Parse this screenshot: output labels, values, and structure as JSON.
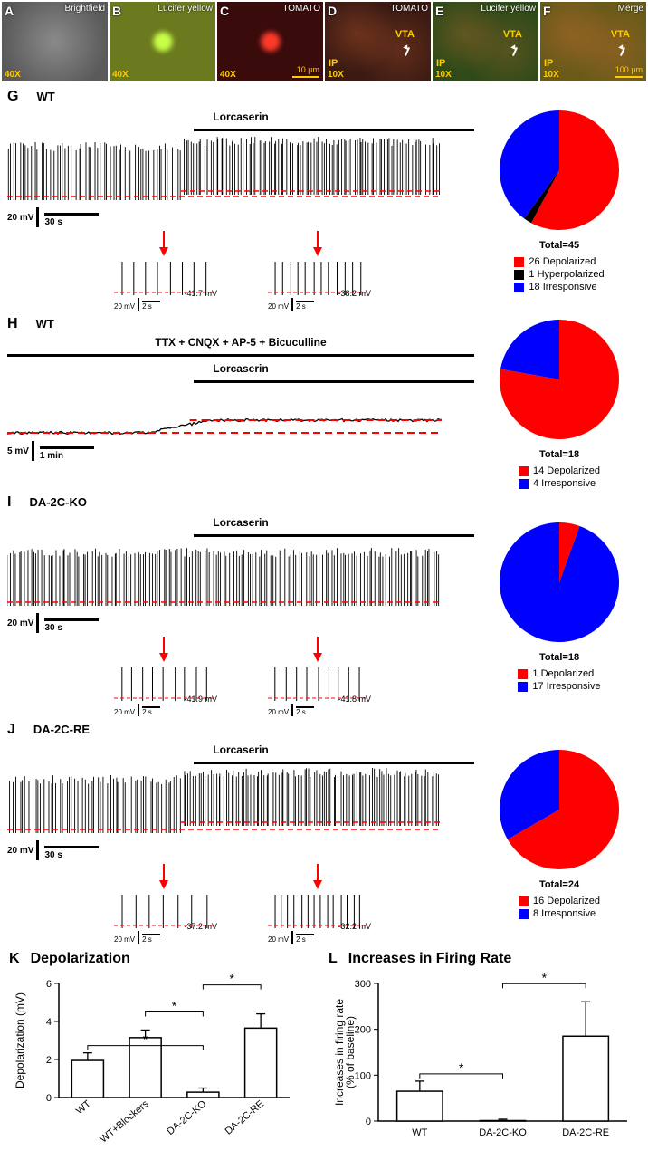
{
  "micro": {
    "panels": [
      {
        "letter": "A",
        "title": "Brightfield",
        "mag": "40X",
        "bg": "#6b6b6b",
        "blob": null,
        "scalebar": null,
        "vta": false,
        "ip": false,
        "arrow": false
      },
      {
        "letter": "B",
        "title": "Lucifer yellow",
        "mag": "40X",
        "bg": "#6b7a1e",
        "blob": "#c7ff4a",
        "scalebar": null,
        "vta": false,
        "ip": false,
        "arrow": false
      },
      {
        "letter": "C",
        "title": "TOMATO",
        "mag": "40X",
        "bg": "#3a0b0b",
        "blob": "#ff3a2a",
        "scalebar": "10 µm",
        "vta": false,
        "ip": false,
        "arrow": false
      },
      {
        "letter": "D",
        "title": "TOMATO",
        "mag": "10X",
        "bg": "#3a1a12",
        "blob": null,
        "scalebar": null,
        "vta": true,
        "ip": true,
        "arrow": true
      },
      {
        "letter": "E",
        "title": "Lucifer yellow",
        "mag": "10X",
        "bg": "#2e4a18",
        "blob": null,
        "scalebar": null,
        "vta": true,
        "ip": true,
        "arrow": true
      },
      {
        "letter": "F",
        "title": "Merge",
        "mag": "10X",
        "bg": "#6a5a1a",
        "blob": null,
        "scalebar": "100 µm",
        "vta": true,
        "ip": true,
        "arrow": true
      }
    ]
  },
  "sections": {
    "G": {
      "genotype": "WT",
      "drug": "Lorcaserin",
      "blockers": null,
      "yscale": "20 mV",
      "xscale": "30 s",
      "inset_yscale": "20 mV",
      "inset_xscale": "2 s",
      "inset_mv_left": "-41.7 mV",
      "inset_mv_right": "-38.2 mV",
      "trace_baseline_mv": -41.7,
      "pie": {
        "total": 45,
        "slices": [
          {
            "label": "26 Depolarized",
            "value": 26,
            "color": "#ff0000"
          },
          {
            "label": "1 Hyperpolarized",
            "value": 1,
            "color": "#000000"
          },
          {
            "label": "18 Irresponsive",
            "value": 18,
            "color": "#0000ff"
          }
        ]
      }
    },
    "H": {
      "genotype": "WT",
      "drug": "Lorcaserin",
      "blockers": "TTX + CNQX + AP-5 + Bicuculline",
      "yscale": "5 mV",
      "xscale": "1 min",
      "inset_yscale": null,
      "inset_xscale": null,
      "inset_mv_left": null,
      "inset_mv_right": null,
      "pie": {
        "total": 18,
        "slices": [
          {
            "label": "14 Depolarized",
            "value": 14,
            "color": "#ff0000"
          },
          {
            "label": "4 Irresponsive",
            "value": 4,
            "color": "#0000ff"
          }
        ]
      }
    },
    "I": {
      "genotype": "DA-2C-KO",
      "drug": "Lorcaserin",
      "blockers": null,
      "yscale": "20 mV",
      "xscale": "30 s",
      "inset_yscale": "20 mV",
      "inset_xscale": "2 s",
      "inset_mv_left": "-41.9 mV",
      "inset_mv_right": "-41.8 mV",
      "pie": {
        "total": 18,
        "slices": [
          {
            "label": "1 Depolarized",
            "value": 1,
            "color": "#ff0000"
          },
          {
            "label": "17 Irresponsive",
            "value": 17,
            "color": "#0000ff"
          }
        ]
      }
    },
    "J": {
      "genotype": "DA-2C-RE",
      "drug": "Lorcaserin",
      "blockers": null,
      "yscale": "20 mV",
      "xscale": "30 s",
      "inset_yscale": "20 mV",
      "inset_xscale": "2 s",
      "inset_mv_left": "-37.2 mV",
      "inset_mv_right": "-32.2 mV",
      "pie": {
        "total": 24,
        "slices": [
          {
            "label": "16 Depolarized",
            "value": 16,
            "color": "#ff0000"
          },
          {
            "label": "8 Irresponsive",
            "value": 8,
            "color": "#0000ff"
          }
        ]
      }
    }
  },
  "barK": {
    "title": "Depolarization",
    "ylabel": "Depolarization (mV)",
    "ylim": [
      0,
      6
    ],
    "ytick_step": 2,
    "categories": [
      "WT",
      "WT+Blockers",
      "DA-2C-KO",
      "DA-2C-RE"
    ],
    "values": [
      1.95,
      3.15,
      0.28,
      3.65
    ],
    "errors": [
      0.4,
      0.4,
      0.22,
      0.75
    ],
    "bar_color": "#ffffff",
    "border_color": "#000000",
    "sig_pairs_star": [
      [
        0,
        2
      ],
      [
        1,
        2
      ],
      [
        2,
        3
      ]
    ]
  },
  "barL": {
    "title": "Increases in Firing Rate",
    "ylabel": "Increases in firing rate\n(% of baseline)",
    "ylim": [
      0,
      300
    ],
    "ytick_step": 100,
    "categories": [
      "WT",
      "DA-2C-KO",
      "DA-2C-RE"
    ],
    "values": [
      65,
      1,
      185
    ],
    "errors": [
      22,
      3,
      75
    ],
    "bar_color": "#ffffff",
    "border_color": "#000000",
    "sig_pairs_star": [
      [
        0,
        1
      ],
      [
        1,
        2
      ]
    ]
  },
  "colors": {
    "red": "#ff0000",
    "blue": "#0000ff",
    "black": "#000000",
    "dash": "#ff0000"
  }
}
